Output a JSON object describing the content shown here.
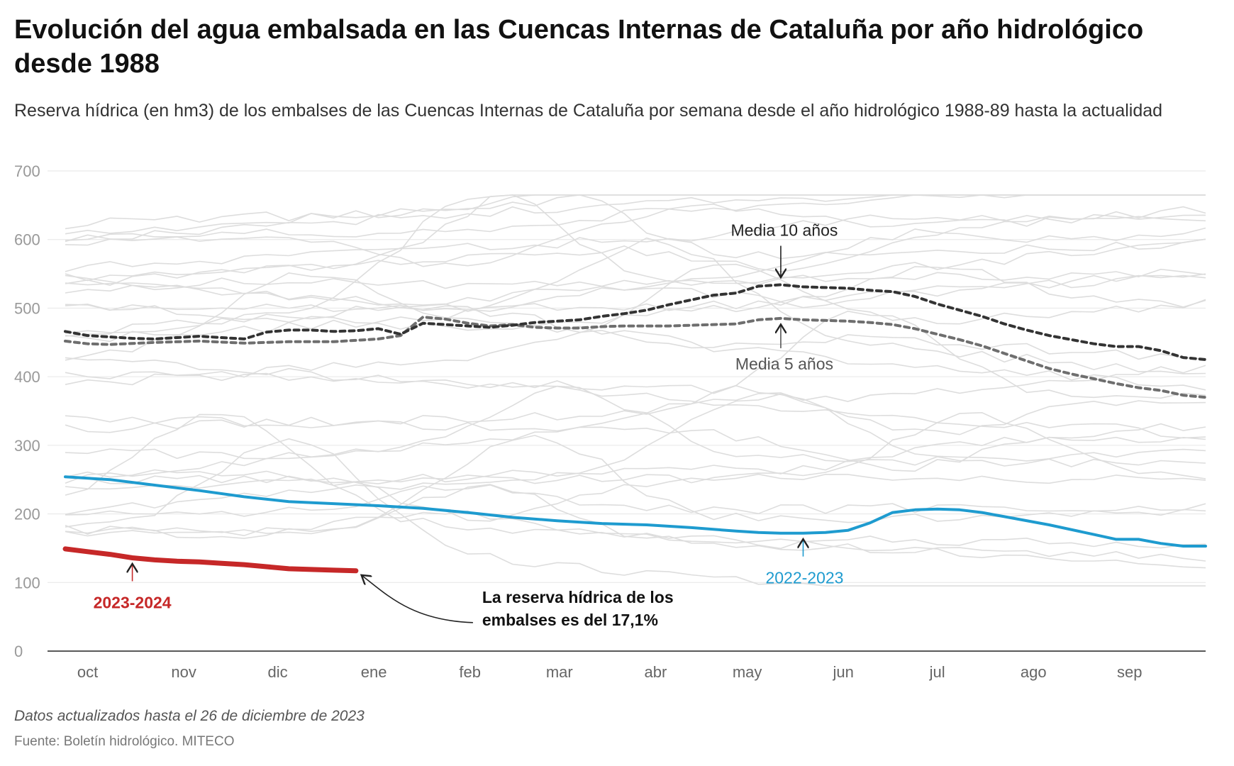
{
  "title": "Evolución del agua embalsada en las Cuencas Internas de Cataluña por año hidrológico desde 1988",
  "subtitle": "Reserva hídrica (en hm3) de los embalses de las Cuencas Internas de Cataluña por semana desde el año hidrológico 1988-89 hasta la actualidad",
  "note": "Datos actualizados hasta el 26 de diciembre de 2023",
  "source": "Fuente: Boletín hidrológico. MITECO",
  "colors": {
    "current": "#c62828",
    "previous": "#1e9bcf",
    "media10": "#333333",
    "media5": "#6e6e6e",
    "history": "#dddddd",
    "grid": "#e6e6e6",
    "axis_text": "#999999"
  },
  "chart_data": {
    "type": "line",
    "x_unit": "semana del año hidrológico (1 = 1 de octubre)",
    "xlim": [
      1,
      52
    ],
    "ylim": [
      0,
      700
    ],
    "yticks": [
      0,
      100,
      200,
      300,
      400,
      500,
      600,
      700
    ],
    "grid": true,
    "month_ticks": [
      {
        "label": "oct",
        "week": 2
      },
      {
        "label": "nov",
        "week": 6.3
      },
      {
        "label": "dic",
        "week": 10.5
      },
      {
        "label": "ene",
        "week": 14.8
      },
      {
        "label": "feb",
        "week": 19.1
      },
      {
        "label": "mar",
        "week": 23.1
      },
      {
        "label": "abr",
        "week": 27.4
      },
      {
        "label": "may",
        "week": 31.5
      },
      {
        "label": "jun",
        "week": 35.8
      },
      {
        "label": "jul",
        "week": 40
      },
      {
        "label": "ago",
        "week": 44.3
      },
      {
        "label": "sep",
        "week": 48.6
      }
    ],
    "series": [
      {
        "name": "2023-2024",
        "x": [
          1,
          2,
          3,
          4,
          5,
          6,
          7,
          8,
          9,
          10,
          11,
          12,
          13,
          14
        ],
        "values": [
          149,
          145,
          141,
          136,
          133,
          131,
          130,
          128,
          126,
          123,
          120,
          119,
          118,
          117
        ]
      },
      {
        "name": "2022-2023",
        "x": [
          1,
          3,
          5,
          7,
          9,
          11,
          13,
          15,
          17,
          19,
          21,
          23,
          25,
          27,
          29,
          31,
          32,
          33,
          34,
          35,
          36,
          37,
          38,
          39,
          40,
          41,
          42,
          43,
          45,
          47,
          48,
          49,
          50,
          51,
          52
        ],
        "values": [
          254,
          250,
          242,
          234,
          225,
          218,
          215,
          212,
          208,
          202,
          195,
          190,
          186,
          184,
          180,
          175,
          173,
          172,
          172,
          173,
          176,
          187,
          202,
          206,
          207,
          206,
          202,
          196,
          184,
          170,
          163,
          163,
          157,
          153,
          153
        ]
      },
      {
        "name": "Media 10 años",
        "x": [
          1,
          2,
          4,
          5,
          6,
          7,
          8,
          9,
          10,
          11,
          12,
          13,
          14,
          15,
          16,
          17,
          18,
          19,
          20,
          21,
          22,
          23,
          24,
          25,
          26,
          27,
          28,
          29,
          30,
          31,
          32,
          33,
          34,
          35,
          36,
          37,
          38,
          39,
          40,
          41,
          42,
          43,
          44,
          45,
          46,
          47,
          48,
          49,
          50,
          51,
          52
        ],
        "values": [
          466,
          460,
          456,
          455,
          457,
          459,
          457,
          455,
          465,
          468,
          468,
          466,
          467,
          470,
          462,
          478,
          476,
          474,
          472,
          475,
          479,
          481,
          483,
          488,
          492,
          497,
          505,
          512,
          519,
          522,
          532,
          534,
          531,
          530,
          529,
          526,
          524,
          517,
          506,
          497,
          488,
          477,
          468,
          460,
          454,
          448,
          444,
          444,
          438,
          428,
          425
        ]
      },
      {
        "name": "Media 5 años",
        "x": [
          1,
          2,
          3,
          5,
          7,
          9,
          11,
          13,
          15,
          16,
          17,
          18,
          19,
          20,
          21,
          22,
          23,
          24,
          25,
          26,
          27,
          28,
          29,
          30,
          31,
          32,
          33,
          34,
          35,
          36,
          37,
          38,
          39,
          40,
          41,
          42,
          43,
          44,
          45,
          46,
          47,
          48,
          49,
          50,
          51,
          52
        ],
        "values": [
          452,
          448,
          447,
          450,
          452,
          449,
          451,
          451,
          455,
          460,
          487,
          484,
          478,
          474,
          476,
          472,
          471,
          471,
          473,
          474,
          474,
          474,
          475,
          476,
          477,
          483,
          485,
          483,
          482,
          481,
          479,
          476,
          470,
          462,
          454,
          445,
          434,
          423,
          412,
          404,
          397,
          390,
          384,
          380,
          373,
          370
        ]
      }
    ],
    "annotations": [
      {
        "text": "Media 10 años",
        "points_to": "Media 10 años",
        "week": 33
      },
      {
        "text": "Media 5 años",
        "points_to": "Media 5 años",
        "week": 33
      },
      {
        "text": "2023-2024",
        "points_to": "2023-2024",
        "week": 4
      },
      {
        "text": "2022-2023",
        "points_to": "2022-2023",
        "week": 34
      },
      {
        "text": "La reserva hídrica de los embalses es del 17,1%",
        "points_to": "2023-2024",
        "week": 14
      }
    ]
  }
}
